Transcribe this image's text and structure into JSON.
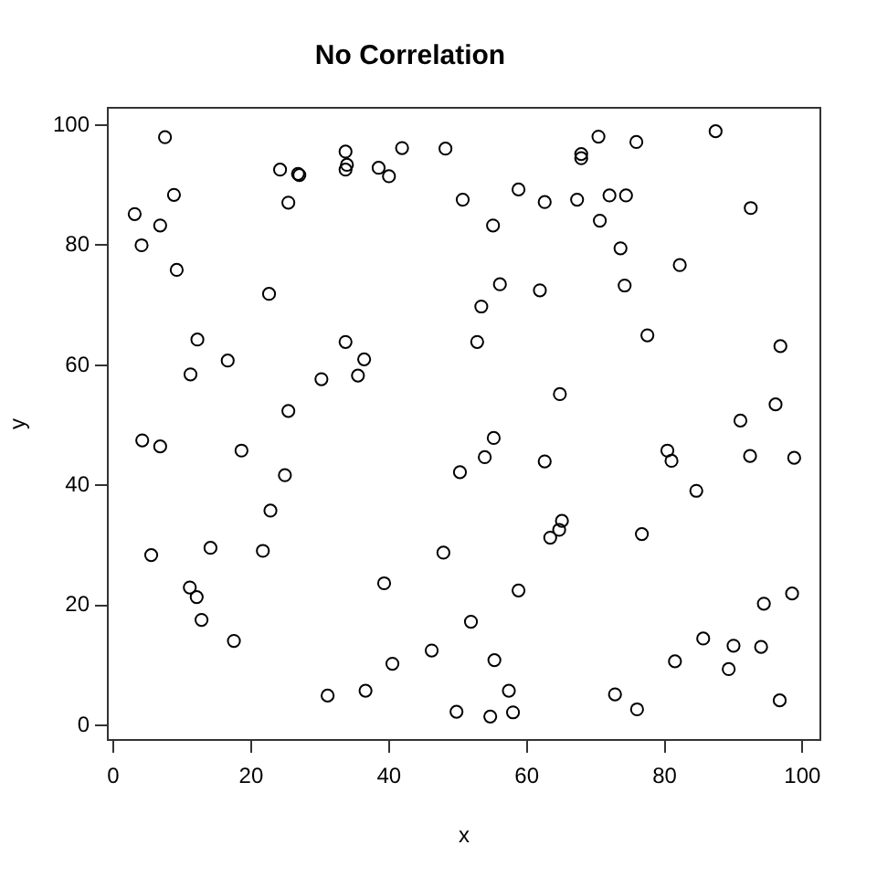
{
  "chart_data": {
    "type": "scatter",
    "title": "No Correlation",
    "xlabel": "x",
    "ylabel": "y",
    "x": [
      7.5,
      3.1,
      8.8,
      6.8,
      4.1,
      9.2,
      22.6,
      12.2,
      16.6,
      11.2,
      33.7,
      36.4,
      35.5,
      30.2,
      25.4,
      24.2,
      26.8,
      27.0,
      25.4,
      33.7,
      33.9,
      33.7,
      38.5,
      40.0,
      41.9,
      48.2,
      70.4,
      75.9,
      87.4,
      67.9,
      67.9,
      50.7,
      58.8,
      62.6,
      67.3,
      72.0,
      74.4,
      92.5,
      55.1,
      70.6,
      73.6,
      82.2,
      56.1,
      61.9,
      74.2,
      53.4,
      52.8,
      77.5,
      96.8,
      64.8,
      96.1,
      91.0,
      4.2,
      6.8,
      18.6,
      24.9,
      22.8,
      5.5,
      14.1,
      21.7,
      11.1,
      12.1,
      12.8,
      17.5,
      39.3,
      47.9,
      46.2,
      40.5,
      36.6,
      31.1,
      49.8,
      55.2,
      53.9,
      50.3,
      62.6,
      80.4,
      81.0,
      92.4,
      98.8,
      84.6,
      65.1,
      64.7,
      63.4,
      76.7,
      58.8,
      51.9,
      98.5,
      94.4,
      85.6,
      90.0,
      94.0,
      81.5,
      55.3,
      89.3,
      57.4,
      72.8,
      96.7,
      54.7,
      58.0,
      76.0
    ],
    "values": [
      98.0,
      85.2,
      88.4,
      83.3,
      80.0,
      75.9,
      71.9,
      64.3,
      60.8,
      58.5,
      63.9,
      61.0,
      58.3,
      57.7,
      52.4,
      92.6,
      91.9,
      91.7,
      87.1,
      95.6,
      93.4,
      92.6,
      92.9,
      91.5,
      96.2,
      96.1,
      98.1,
      97.2,
      99.0,
      95.2,
      94.5,
      87.6,
      89.3,
      87.2,
      87.6,
      88.3,
      88.3,
      86.2,
      83.3,
      84.1,
      79.5,
      76.7,
      73.5,
      72.5,
      73.3,
      69.8,
      63.9,
      65.0,
      63.2,
      55.2,
      53.5,
      50.8,
      47.5,
      46.5,
      45.8,
      41.7,
      35.8,
      28.4,
      29.6,
      29.1,
      23.0,
      21.4,
      17.6,
      14.1,
      23.7,
      28.8,
      12.5,
      10.3,
      5.8,
      5.0,
      2.3,
      47.9,
      44.7,
      42.2,
      44.0,
      45.8,
      44.1,
      44.9,
      44.6,
      39.1,
      34.1,
      32.6,
      31.3,
      31.9,
      22.5,
      17.3,
      22.0,
      20.3,
      14.5,
      13.3,
      13.1,
      10.7,
      10.9,
      9.4,
      5.8,
      5.2,
      4.2,
      1.5,
      2.2,
      2.7
    ],
    "color": "#000000",
    "marker": "circle",
    "xlim": [
      -0.8,
      102.6
    ],
    "ylim": [
      -2.4,
      102.9
    ],
    "xticks": [
      0,
      20,
      40,
      60,
      80,
      100
    ],
    "yticks": [
      0,
      20,
      40,
      60,
      80,
      100
    ],
    "grid": false
  }
}
